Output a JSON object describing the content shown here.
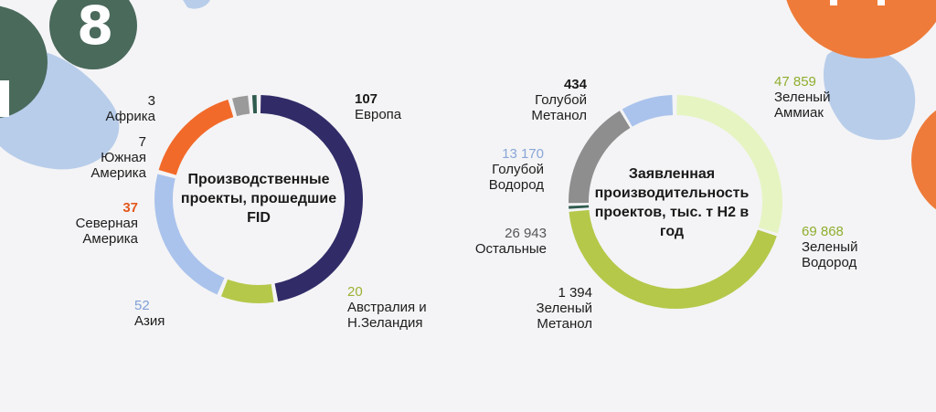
{
  "decor": {
    "badge_number": "8",
    "colors": {
      "badge": "#4a6a5c",
      "blob": "#b8cdea",
      "orange": "#ee7b3a"
    }
  },
  "chart_data": [
    {
      "type": "pie",
      "title": "Производственные проекты, прошедшие FID",
      "slices": [
        {
          "label": "Европа",
          "value": 107,
          "value_label": "107",
          "color": "#312c68",
          "value_color": "#1a1a1a"
        },
        {
          "label": "Австралия и Н.Зеландия",
          "value": 20,
          "value_label": "20",
          "color": "#b5c84a",
          "value_color": "#9bb234"
        },
        {
          "label": "Азия",
          "value": 52,
          "value_label": "52",
          "color": "#aac3ec",
          "value_color": "#7f9fd6"
        },
        {
          "label": "Северная Америка",
          "value": 37,
          "value_label": "37",
          "color": "#f26a2a",
          "value_color": "#e3581c"
        },
        {
          "label": "Южная Америка",
          "value": 7,
          "value_label": "7",
          "color": "#9a9a9a",
          "value_color": "#1a1a1a"
        },
        {
          "label": "Африка",
          "value": 3,
          "value_label": "3",
          "color": "#2f5b4f",
          "value_color": "#1a1a1a"
        }
      ]
    },
    {
      "type": "pie",
      "title": "Заявленная производительность проектов, тыс. т H2 в год",
      "slices": [
        {
          "label": "Зеленый Аммиак",
          "value": 47859,
          "value_label": "47 859",
          "color": "#e6f4c2",
          "value_color": "#8fae2e"
        },
        {
          "label": "Зеленый Водород",
          "value": 69868,
          "value_label": "69 868",
          "color": "#b5c84a",
          "value_color": "#8fae2e"
        },
        {
          "label": "Зеленый Метанол",
          "value": 1394,
          "value_label": "1 394",
          "color": "#2f5b4f",
          "value_color": "#1a1a1a"
        },
        {
          "label": "Остальные",
          "value": 26943,
          "value_label": "26 943",
          "color": "#8e8e8e",
          "value_color": "#555555"
        },
        {
          "label": "Голубой Водород",
          "value": 13170,
          "value_label": "13 170",
          "color": "#aac3ec",
          "value_color": "#8aa6d8"
        },
        {
          "label": "Голубой Метанол",
          "value": 434,
          "value_label": "434",
          "color": "#312c68",
          "value_color": "#1a1a1a"
        }
      ]
    }
  ]
}
